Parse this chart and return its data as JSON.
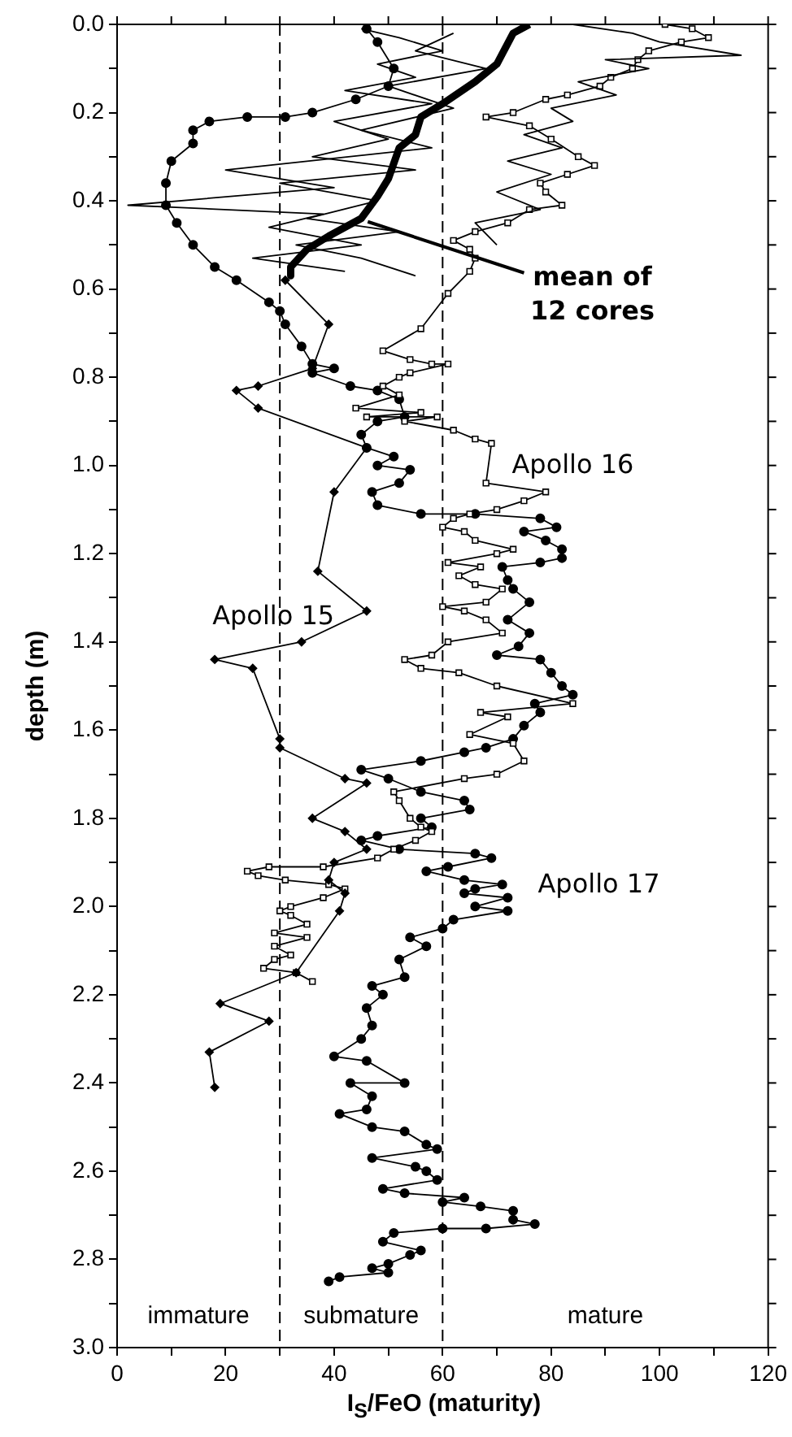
{
  "chart_data": {
    "type": "line",
    "xlabel": "I$_{S}$/FeO (maturity)",
    "ylabel": "depth  (m)",
    "xlim": [
      0,
      120
    ],
    "xticks": [
      0,
      {
        "value": 10,
        "label": null
      },
      20,
      {
        "value": 30,
        "label": null
      },
      40,
      {
        "value": 50,
        "label": null
      },
      60,
      {
        "value": 70,
        "label": null
      },
      80,
      {
        "value": 90,
        "label": null
      },
      100,
      {
        "value": 110,
        "label": null
      },
      120
    ],
    "ylim": [
      3.0,
      0.0
    ],
    "yticks": [
      {
        "value": 0,
        "label": "0.0"
      },
      {
        "value": 0.1,
        "label": null
      },
      {
        "value": 0.2,
        "label": "0.2"
      },
      {
        "value": 0.3,
        "label": null
      },
      {
        "value": 0.4,
        "label": "0.4"
      },
      {
        "value": 0.5,
        "label": null
      },
      {
        "value": 0.6,
        "label": "0.6"
      },
      {
        "value": 0.7,
        "label": null
      },
      {
        "value": 0.8,
        "label": "0.8"
      },
      {
        "value": 0.9,
        "label": null
      },
      {
        "value": 1.0,
        "label": "1.0"
      },
      {
        "value": 1.1,
        "label": null
      },
      {
        "value": 1.2,
        "label": "1.2"
      },
      {
        "value": 1.3,
        "label": null
      },
      {
        "value": 1.4,
        "label": "1.4"
      },
      {
        "value": 1.5,
        "label": null
      },
      {
        "value": 1.6,
        "label": "1.6"
      },
      {
        "value": 1.7,
        "label": null
      },
      {
        "value": 1.8,
        "label": "1.8"
      },
      {
        "value": 1.9,
        "label": null
      },
      {
        "value": 2.0,
        "label": "2.0"
      },
      {
        "value": 2.1,
        "label": null
      },
      {
        "value": 2.2,
        "label": "2.2"
      },
      {
        "value": 2.3,
        "label": null
      },
      {
        "value": 2.4,
        "label": "2.4"
      },
      {
        "value": 2.5,
        "label": null
      },
      {
        "value": 2.6,
        "label": "2.6"
      },
      {
        "value": 2.7,
        "label": null
      },
      {
        "value": 2.8,
        "label": "2.8"
      },
      {
        "value": 2.9,
        "label": null
      },
      {
        "value": 3.0,
        "label": "3.0"
      }
    ],
    "grid": false,
    "legend": false,
    "ref_lines": [
      {
        "axis": "x",
        "value": 30,
        "line_style": "dashed"
      },
      {
        "axis": "x",
        "value": 60,
        "line_style": "dashed"
      }
    ],
    "annotations": [
      "immature",
      "submature",
      "mature"
    ],
    "series": [
      {
        "color": "#000000",
        "marker": "none",
        "x": [
          84,
          95,
          100,
          115,
          90,
          98,
          85,
          92,
          80,
          84,
          75,
          82,
          72,
          80,
          70,
          78,
          66,
          70
        ],
        "values": [
          0.0,
          0.02,
          0.04,
          0.07,
          0.08,
          0.1,
          0.13,
          0.16,
          0.19,
          0.22,
          0.25,
          0.28,
          0.31,
          0.34,
          0.38,
          0.42,
          0.45,
          0.5
        ]
      },
      {
        "color": "#000000",
        "marker": "none",
        "x": [
          45,
          52,
          60,
          48,
          55,
          42,
          58,
          40,
          50,
          36,
          55,
          30,
          48,
          35,
          52,
          33,
          45,
          55
        ],
        "values": [
          0.01,
          0.03,
          0.06,
          0.09,
          0.12,
          0.15,
          0.18,
          0.22,
          0.26,
          0.3,
          0.33,
          0.36,
          0.4,
          0.44,
          0.47,
          0.5,
          0.53,
          0.57
        ]
      },
      {
        "color": "#000000",
        "marker": "none",
        "x": [
          62,
          55,
          68,
          50,
          62,
          45,
          58,
          20,
          40,
          2,
          38,
          28,
          45,
          25,
          42
        ],
        "values": [
          0.02,
          0.06,
          0.1,
          0.14,
          0.19,
          0.24,
          0.28,
          0.33,
          0.37,
          0.41,
          0.43,
          0.46,
          0.5,
          0.53,
          0.56
        ]
      },
      {
        "name": "Apollo 15",
        "color": "#000000",
        "marker": "diamond",
        "x": [
          31,
          39,
          36,
          26,
          22,
          26,
          46,
          40,
          37,
          46,
          34,
          18,
          25,
          30,
          30,
          42,
          46,
          36,
          42,
          46,
          40,
          39,
          42,
          41,
          33,
          19,
          28,
          17,
          18
        ],
        "values": [
          0.58,
          0.68,
          0.78,
          0.82,
          0.83,
          0.87,
          0.96,
          1.06,
          1.24,
          1.33,
          1.4,
          1.44,
          1.46,
          1.62,
          1.64,
          1.71,
          1.72,
          1.8,
          1.83,
          1.87,
          1.9,
          1.94,
          1.97,
          2.01,
          2.15,
          2.22,
          2.26,
          2.33,
          2.41
        ]
      },
      {
        "name": "Apollo 16",
        "color": "#000000",
        "marker": "square",
        "x": [
          101,
          106,
          109,
          104,
          98,
          96,
          95,
          91,
          89,
          83,
          79,
          73,
          68,
          76,
          80,
          85,
          88,
          83,
          78,
          79,
          82,
          76,
          72,
          66,
          62,
          65,
          66,
          65,
          61,
          56,
          49,
          54,
          58,
          61,
          54,
          52,
          49,
          52,
          44,
          56,
          46,
          59,
          53,
          62,
          66,
          69,
          68,
          79,
          75,
          70,
          65,
          62,
          60,
          64,
          66,
          73,
          70,
          61,
          67,
          63,
          66,
          71,
          68,
          60,
          64,
          68,
          71,
          61,
          58,
          53,
          56,
          63,
          70,
          84,
          67,
          72,
          65,
          73,
          75,
          70,
          64,
          51,
          52,
          54,
          56,
          58,
          55,
          51,
          48,
          38,
          28,
          24,
          26,
          31,
          39,
          42,
          38,
          32,
          30,
          32,
          35,
          29,
          35,
          29,
          32,
          29,
          27,
          33,
          36
        ],
        "values": [
          0.0,
          0.01,
          0.03,
          0.04,
          0.06,
          0.08,
          0.1,
          0.12,
          0.14,
          0.16,
          0.17,
          0.2,
          0.21,
          0.23,
          0.26,
          0.3,
          0.32,
          0.34,
          0.36,
          0.38,
          0.41,
          0.42,
          0.45,
          0.47,
          0.49,
          0.51,
          0.53,
          0.56,
          0.61,
          0.69,
          0.74,
          0.76,
          0.77,
          0.77,
          0.79,
          0.8,
          0.82,
          0.84,
          0.87,
          0.88,
          0.89,
          0.89,
          0.9,
          0.92,
          0.94,
          0.95,
          1.04,
          1.06,
          1.08,
          1.1,
          1.11,
          1.12,
          1.14,
          1.15,
          1.17,
          1.19,
          1.2,
          1.22,
          1.23,
          1.25,
          1.27,
          1.28,
          1.31,
          1.32,
          1.33,
          1.35,
          1.38,
          1.4,
          1.43,
          1.44,
          1.46,
          1.47,
          1.5,
          1.54,
          1.56,
          1.57,
          1.61,
          1.63,
          1.67,
          1.7,
          1.71,
          1.74,
          1.76,
          1.8,
          1.82,
          1.83,
          1.85,
          1.87,
          1.89,
          1.91,
          1.91,
          1.92,
          1.93,
          1.94,
          1.95,
          1.96,
          1.98,
          2.0,
          2.01,
          2.02,
          2.04,
          2.06,
          2.07,
          2.09,
          2.11,
          2.12,
          2.14,
          2.15,
          2.17
        ]
      },
      {
        "name": "Apollo 17",
        "color": "#000000",
        "marker": "circle",
        "x": [
          46,
          48,
          51,
          50,
          44,
          36,
          31,
          24,
          17,
          14,
          14,
          10,
          9,
          9,
          11,
          14,
          18,
          22,
          28,
          30,
          31,
          34,
          36,
          40,
          36,
          43,
          48,
          52,
          53,
          48,
          45,
          46,
          51,
          48,
          54,
          52,
          47,
          48,
          56,
          66,
          78,
          81,
          75,
          79,
          82,
          82,
          78,
          71,
          72,
          73,
          76,
          72,
          76,
          74,
          70,
          78,
          80,
          82,
          84,
          77,
          78,
          75,
          73,
          68,
          64,
          56,
          45,
          50,
          56,
          64,
          65,
          56,
          58,
          48,
          45,
          52,
          66,
          69,
          61,
          57,
          64,
          71,
          66,
          64,
          72,
          66,
          72,
          62,
          60,
          54,
          57,
          52,
          53,
          47,
          49,
          46,
          47,
          45,
          40,
          46,
          53,
          43,
          47,
          46,
          41,
          47,
          53,
          57,
          59,
          47,
          55,
          57,
          59,
          49,
          53,
          64,
          60,
          67,
          73,
          73,
          77,
          68,
          60,
          51,
          49,
          56,
          54,
          50,
          47,
          50,
          41,
          39
        ],
        "values": [
          0.01,
          0.04,
          0.1,
          0.14,
          0.17,
          0.2,
          0.21,
          0.21,
          0.22,
          0.24,
          0.27,
          0.31,
          0.36,
          0.41,
          0.45,
          0.5,
          0.55,
          0.58,
          0.63,
          0.65,
          0.68,
          0.73,
          0.77,
          0.78,
          0.79,
          0.82,
          0.83,
          0.85,
          0.89,
          0.9,
          0.93,
          0.96,
          0.98,
          1.0,
          1.01,
          1.04,
          1.06,
          1.09,
          1.11,
          1.11,
          1.12,
          1.14,
          1.15,
          1.17,
          1.19,
          1.21,
          1.22,
          1.23,
          1.26,
          1.28,
          1.31,
          1.35,
          1.38,
          1.41,
          1.43,
          1.44,
          1.47,
          1.5,
          1.52,
          1.54,
          1.56,
          1.59,
          1.62,
          1.64,
          1.65,
          1.67,
          1.69,
          1.71,
          1.74,
          1.76,
          1.78,
          1.8,
          1.82,
          1.84,
          1.85,
          1.87,
          1.88,
          1.89,
          1.91,
          1.92,
          1.94,
          1.95,
          1.96,
          1.97,
          1.98,
          2.0,
          2.01,
          2.03,
          2.05,
          2.07,
          2.09,
          2.12,
          2.16,
          2.18,
          2.2,
          2.23,
          2.27,
          2.3,
          2.34,
          2.35,
          2.4,
          2.4,
          2.43,
          2.46,
          2.47,
          2.5,
          2.51,
          2.54,
          2.55,
          2.57,
          2.59,
          2.6,
          2.62,
          2.64,
          2.65,
          2.66,
          2.67,
          2.68,
          2.69,
          2.71,
          2.72,
          2.73,
          2.73,
          2.74,
          2.76,
          2.78,
          2.79,
          2.81,
          2.82,
          2.83,
          2.84,
          2.85
        ]
      },
      {
        "name": "mean of 12 cores",
        "color": "#000000",
        "marker": "none",
        "x": [
          76,
          73,
          70,
          66,
          60,
          56,
          55,
          52,
          50,
          48,
          45,
          39,
          35,
          32,
          32
        ],
        "values": [
          0.0,
          0.02,
          0.09,
          0.13,
          0.18,
          0.21,
          0.25,
          0.28,
          0.35,
          0.39,
          0.44,
          0.48,
          0.51,
          0.55,
          0.57
        ]
      }
    ]
  }
}
